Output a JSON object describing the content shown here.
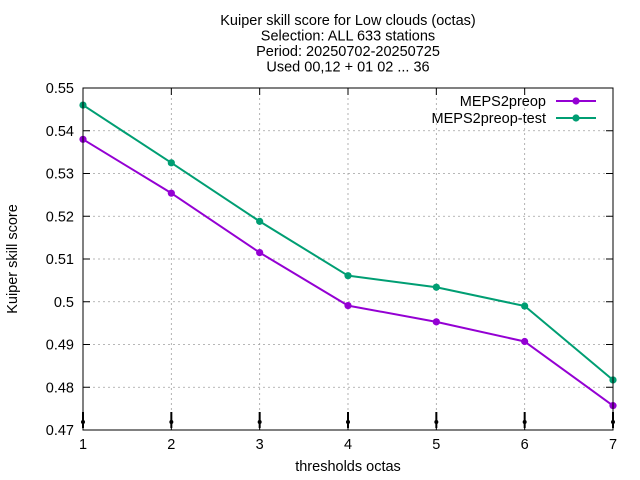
{
  "chart_data": {
    "type": "line",
    "title_lines": [
      "Kuiper skill score  for Low clouds (octas)",
      "Selection: ALL    633 stations",
      "Period: 20250702-20250725",
      "Used 00,12 + 01 02 ... 36"
    ],
    "xlabel": "thresholds octas",
    "ylabel": "Kuiper skill score",
    "x": [
      1,
      2,
      3,
      4,
      5,
      6,
      7
    ],
    "xlim": [
      1,
      7
    ],
    "ylim": [
      0.47,
      0.55
    ],
    "xticks": [
      "1",
      "2",
      "3",
      "4",
      "5",
      "6",
      "7"
    ],
    "yticks": [
      "0.47",
      "0.48",
      "0.49",
      "0.5",
      "0.51",
      "0.52",
      "0.53",
      "0.54",
      "0.55"
    ],
    "grid": true,
    "legend_position": "top-right",
    "series": [
      {
        "name": "MEPS2preop",
        "color": "#9400d3",
        "values": [
          0.538,
          0.5254,
          0.5115,
          0.4991,
          0.4953,
          0.4907,
          0.4757
        ]
      },
      {
        "name": "MEPS2preop-test",
        "color": "#009e73",
        "values": [
          0.546,
          0.5325,
          0.5188,
          0.5061,
          0.5034,
          0.499,
          0.4817
        ]
      }
    ]
  }
}
